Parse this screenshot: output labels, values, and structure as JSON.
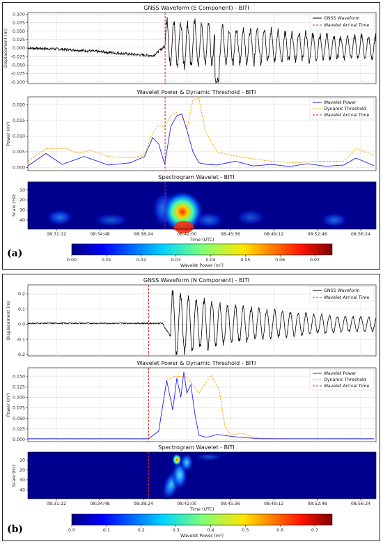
{
  "colors": {
    "waveform": "#000000",
    "power": "#1f1fff",
    "threshold": "#ffa500",
    "arrival": "#e31a1c"
  },
  "time_ticks": [
    "08:31:12",
    "08:34:48",
    "08:38:24",
    "08:42:00",
    "08:45:36",
    "08:49:12",
    "08:52:48",
    "08:56:24"
  ],
  "time_axis_label": "Time (UTC)",
  "colorbar_label": "Wavelet Power (m²)",
  "chart_data": [
    {
      "panel": "(a)",
      "type": "line",
      "title": "GNSS Waveform (E Component) - BITI",
      "ylabel": "Displacement (m)",
      "ylim": [
        -0.105,
        0.105
      ],
      "yticks": [
        "0.100",
        "0.075",
        "0.050",
        "0.025",
        "0.000",
        "-0.025",
        "-0.050",
        "-0.075",
        "-0.100"
      ],
      "legend": [
        "GNSS Waveform",
        "Wavelet Arrival Time"
      ],
      "arrival_time": "08:40:12",
      "grid": true,
      "legend_position": "top-right"
    },
    {
      "panel": "(a)",
      "type": "line",
      "title": "Wavelet Power & Dynamic Threshold - BITI",
      "ylabel": "Power (m²)",
      "ylim": [
        -0.001,
        0.0225
      ],
      "yticks": [
        "0.020",
        "0.015",
        "0.010",
        "0.005",
        "0.000"
      ],
      "legend": [
        "Wavelet Power",
        "Dynamic Threshold",
        "Wavelet Arrival Time"
      ],
      "series": [
        {
          "name": "Wavelet Power",
          "x": [
            "08:28:50",
            "08:30:20",
            "08:31:40",
            "08:33:30",
            "08:35:30",
            "08:37:20",
            "08:38:30",
            "08:39:10",
            "08:39:40",
            "08:40:10",
            "08:40:40",
            "08:41:10",
            "08:41:35",
            "08:42:00",
            "08:42:30",
            "08:43:00",
            "08:43:40",
            "08:44:30",
            "08:46:00",
            "08:47:30",
            "08:49:00",
            "08:50:30",
            "08:52:00",
            "08:53:30",
            "08:55:00",
            "08:56:00",
            "08:57:30"
          ],
          "values": [
            0.0005,
            0.0045,
            0.001,
            0.0035,
            0.0008,
            0.0015,
            0.0035,
            0.0095,
            0.0075,
            0.001,
            0.013,
            0.0165,
            0.017,
            0.012,
            0.005,
            0.0015,
            0.001,
            0.0008,
            0.002,
            0.0005,
            0.001,
            0.0003,
            0.0012,
            0.0004,
            0.0008,
            0.003,
            0.0006
          ]
        },
        {
          "name": "Dynamic Threshold",
          "x": [
            "08:28:50",
            "08:30:20",
            "08:32:00",
            "08:33:00",
            "08:34:00",
            "08:35:30",
            "08:37:20",
            "08:38:30",
            "08:39:10",
            "08:39:40",
            "08:40:10",
            "08:40:40",
            "08:41:10",
            "08:41:35",
            "08:42:00",
            "08:42:30",
            "08:43:00",
            "08:43:30",
            "08:44:30",
            "08:45:30",
            "08:47:00",
            "08:49:00",
            "08:51:00",
            "08:53:00",
            "08:55:00",
            "08:56:00",
            "08:57:30"
          ],
          "values": [
            0.002,
            0.006,
            0.006,
            0.0045,
            0.0055,
            0.0035,
            0.003,
            0.004,
            0.011,
            0.0135,
            0.013,
            0.0165,
            0.0175,
            0.0165,
            0.012,
            0.0215,
            0.022,
            0.012,
            0.005,
            0.004,
            0.003,
            0.002,
            0.0015,
            0.002,
            0.002,
            0.006,
            0.004
          ]
        }
      ],
      "arrival_time": "08:40:12",
      "grid": true,
      "legend_position": "top-right"
    },
    {
      "panel": "(a)",
      "type": "heatmap",
      "title": "Spectrogram Wavelet - BITI",
      "ylabel": "Scale (Hz)",
      "yticks": [
        "10",
        "20",
        "30",
        "40"
      ],
      "colorbar_ticks": [
        "0.00",
        "0.01",
        "0.02",
        "0.03",
        "0.04",
        "0.05",
        "0.06",
        "0.07"
      ],
      "colorbar_range": [
        0,
        0.075
      ],
      "arrival_time": "08:40:12"
    },
    {
      "panel": "(b)",
      "type": "line",
      "title": "GNSS Waveform (N Component) - BITI",
      "ylabel": "Displacement (m)",
      "ylim": [
        -0.21,
        0.26
      ],
      "yticks": [
        "0.2",
        "0.1",
        "0.0",
        "-0.1",
        "-0.2"
      ],
      "legend": [
        "GNSS Waveform",
        "Wavelet Arrival Time"
      ],
      "arrival_time": "08:38:50",
      "grid": true,
      "legend_position": "top-right"
    },
    {
      "panel": "(b)",
      "type": "line",
      "title": "Wavelet Power & Dynamic Threshold - BITI",
      "ylabel": "Power (m²)",
      "ylim": [
        -0.005,
        0.17
      ],
      "yticks": [
        "0.150",
        "0.125",
        "0.100",
        "0.075",
        "0.050",
        "0.025",
        "0.000"
      ],
      "legend": [
        "Wavelet Power",
        "Dynamic Threshold",
        "Wavelet Arrival Time"
      ],
      "series": [
        {
          "name": "Wavelet Power",
          "x": [
            "08:28:50",
            "08:38:50",
            "08:39:40",
            "08:40:20",
            "08:40:50",
            "08:41:10",
            "08:41:30",
            "08:41:45",
            "08:42:00",
            "08:42:20",
            "08:42:40",
            "08:43:00",
            "08:43:40",
            "08:44:30",
            "08:45:30",
            "08:46:30",
            "08:48:00",
            "08:57:30"
          ],
          "values": [
            0.002,
            0.002,
            0.02,
            0.14,
            0.07,
            0.145,
            0.1,
            0.16,
            0.11,
            0.13,
            0.06,
            0.01,
            0.005,
            0.012,
            0.008,
            0.005,
            0.002,
            0.002
          ]
        },
        {
          "name": "Dynamic Threshold",
          "x": [
            "08:28:50",
            "08:38:50",
            "08:39:40",
            "08:40:20",
            "08:41:00",
            "08:42:00",
            "08:43:00",
            "08:44:00",
            "08:44:40",
            "08:45:10",
            "08:45:40",
            "08:46:30",
            "08:47:30",
            "08:49:00",
            "08:57:30"
          ],
          "values": [
            0.001,
            0.001,
            0.02,
            0.14,
            0.15,
            0.148,
            0.11,
            0.152,
            0.12,
            0.03,
            0.01,
            0.015,
            0.005,
            0.002,
            0.001
          ]
        }
      ],
      "arrival_time": "08:38:50",
      "grid": true,
      "legend_position": "top-right"
    },
    {
      "panel": "(b)",
      "type": "heatmap",
      "title": "Spectrogram Wavelet - BITI",
      "ylabel": "Scale (Hz)",
      "yticks": [
        "10",
        "20",
        "30",
        "40"
      ],
      "colorbar_ticks": [
        "0.0",
        "0.1",
        "0.2",
        "0.3",
        "0.4",
        "0.5",
        "0.6",
        "0.7"
      ],
      "colorbar_range": [
        0,
        0.75
      ],
      "arrival_time": "08:38:50"
    }
  ]
}
